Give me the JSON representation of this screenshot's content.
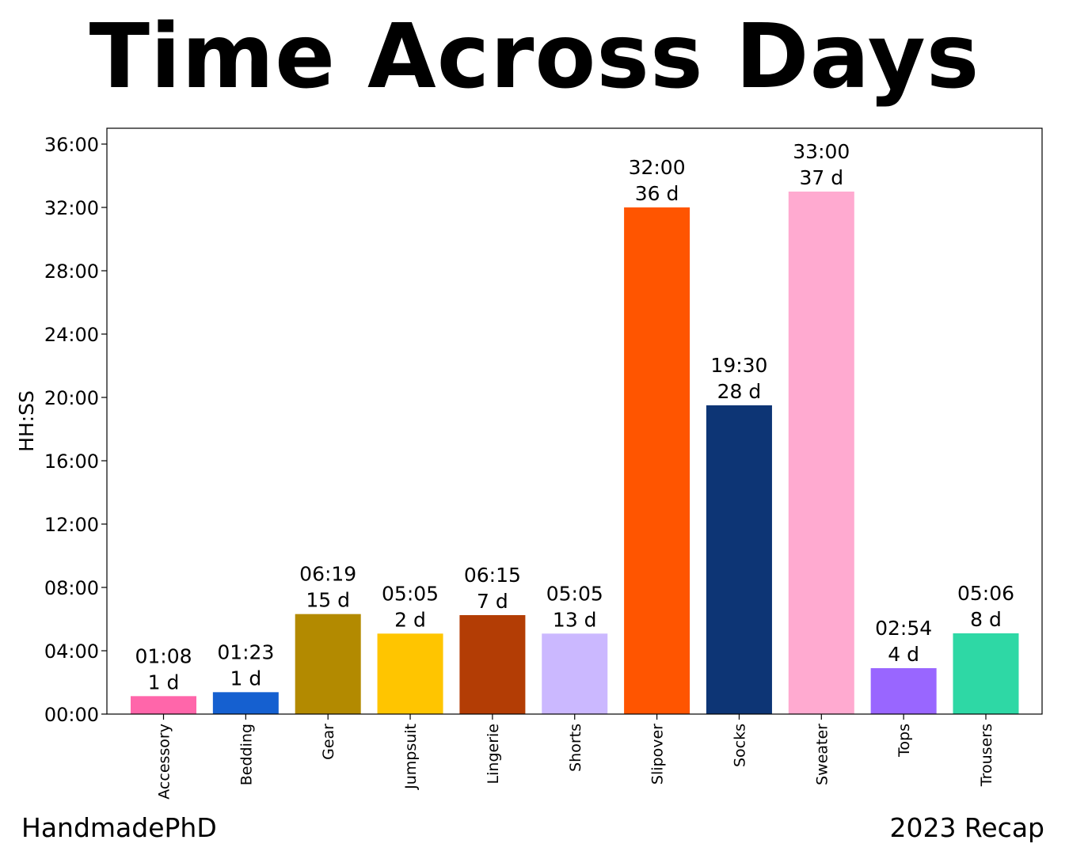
{
  "chart_data": {
    "type": "bar",
    "title": "Time Across Days",
    "xlabel": "",
    "ylabel": "HH:SS",
    "ylim": [
      0,
      2160
    ],
    "y_unit": "minutes",
    "y_ticks": [
      0,
      240,
      480,
      720,
      960,
      1200,
      1440,
      1680,
      1920,
      2160
    ],
    "y_tick_labels": [
      "00:00",
      "04:00",
      "08:00",
      "12:00",
      "16:00",
      "20:00",
      "24:00",
      "28:00",
      "32:00",
      "36:00"
    ],
    "grid": false,
    "categories": [
      "Accessory",
      "Bedding",
      "Gear",
      "Jumpsuit",
      "Lingerie",
      "Shorts",
      "Slipover",
      "Socks",
      "Sweater",
      "Tops",
      "Trousers"
    ],
    "values": [
      68,
      83,
      379,
      305,
      375,
      305,
      1920,
      1170,
      1980,
      174,
      306
    ],
    "value_labels": [
      "01:08",
      "01:23",
      "06:19",
      "05:05",
      "06:15",
      "05:05",
      "32:00",
      "19:30",
      "33:00",
      "02:54",
      "05:06"
    ],
    "day_labels": [
      "1 d",
      "1 d",
      "15 d",
      "2 d",
      "7 d",
      "13 d",
      "36 d",
      "28 d",
      "37 d",
      "4 d",
      "8 d"
    ],
    "colors": [
      "#ff66aa",
      "#1560d0",
      "#b38a00",
      "#ffc500",
      "#b33d05",
      "#cbb8ff",
      "#ff5500",
      "#0d3575",
      "#ffaad0",
      "#9966ff",
      "#2ed8a5"
    ]
  },
  "footer": {
    "left": "HandmadePhD",
    "right": "2023 Recap"
  }
}
